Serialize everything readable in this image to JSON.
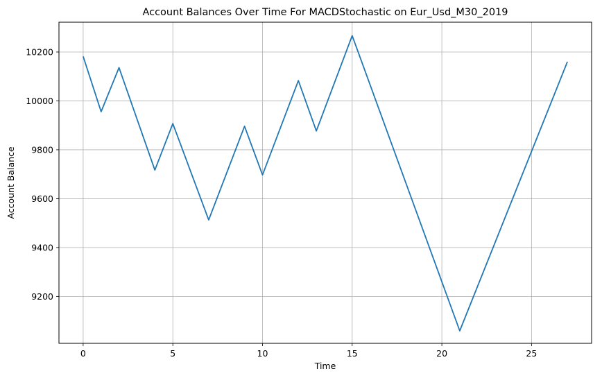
{
  "chart_data": {
    "type": "line",
    "title": "Account Balances Over Time For MACDStochastic on Eur_Usd_M30_2019",
    "xlabel": "Time",
    "ylabel": "Account Balance",
    "xlim": [
      -1.35,
      28.35
    ],
    "ylim": [
      9008,
      10322
    ],
    "xticks": [
      0,
      5,
      10,
      15,
      20,
      25
    ],
    "yticks": [
      9200,
      9400,
      9600,
      9800,
      10000,
      10200
    ],
    "grid": true,
    "series": [
      {
        "color": "#1f77b4",
        "x": [
          0,
          1,
          2,
          4,
          5,
          7,
          9,
          10,
          12,
          13,
          15,
          21,
          27
        ],
        "y": [
          10182,
          9956,
          10136,
          9717,
          9907,
          9513,
          9896,
          9697,
          10083,
          9877,
          10267,
          9059,
          10160
        ]
      }
    ]
  }
}
